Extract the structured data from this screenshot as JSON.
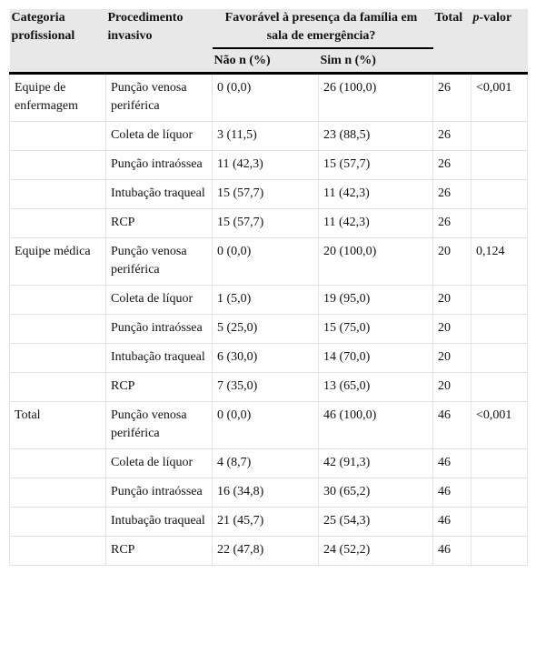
{
  "header": {
    "category": "Categoria profissional",
    "procedure": "Procedimento invasivo",
    "favorable": "Favorável à presença da família em sala de emergência?",
    "no": "Não n (%)",
    "yes": "Sim n (%)",
    "total": "Total",
    "p_italic": "p",
    "p_rest": "-valor"
  },
  "groups": [
    {
      "category": "Equipe de enfermagem",
      "p_value": "<0,001",
      "rows": [
        [
          "Punção venosa periférica",
          "0 (0,0)",
          "26 (100,0)",
          "26"
        ],
        [
          "Coleta de líquor",
          "3 (11,5)",
          "23 (88,5)",
          "26"
        ],
        [
          "Punção intraóssea",
          "11 (42,3)",
          "15 (57,7)",
          "26"
        ],
        [
          "Intubação traqueal",
          "15 (57,7)",
          "11 (42,3)",
          "26"
        ],
        [
          "RCP",
          "15 (57,7)",
          "11 (42,3)",
          "26"
        ]
      ]
    },
    {
      "category": "Equipe médica",
      "p_value": "0,124",
      "rows": [
        [
          "Punção venosa periférica",
          "0 (0,0)",
          "20 (100,0)",
          "20"
        ],
        [
          "Coleta de líquor",
          "1 (5,0)",
          "19 (95,0)",
          "20"
        ],
        [
          "Punção intraóssea",
          "5 (25,0)",
          "15 (75,0)",
          "20"
        ],
        [
          "Intubação traqueal",
          "6 (30,0)",
          "14 (70,0)",
          "20"
        ],
        [
          "RCP",
          "7 (35,0)",
          "13 (65,0)",
          "20"
        ]
      ]
    },
    {
      "category": "Total",
      "p_value": "<0,001",
      "rows": [
        [
          "Punção venosa periférica",
          "0 (0,0)",
          "46 (100,0)",
          "46"
        ],
        [
          "Coleta de líquor",
          "4 (8,7)",
          "42 (91,3)",
          "46"
        ],
        [
          "Punção intraóssea",
          "16 (34,8)",
          "30 (65,2)",
          "46"
        ],
        [
          "Intubação traqueal",
          "21 (45,7)",
          "25 (54,3)",
          "46"
        ],
        [
          "RCP",
          "22 (47,8)",
          "24 (52,2)",
          "46"
        ]
      ]
    }
  ]
}
